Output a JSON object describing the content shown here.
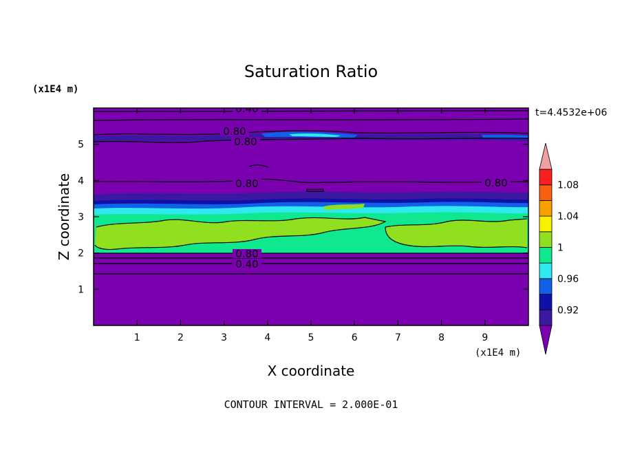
{
  "chart_data": {
    "type": "heatmap",
    "title": "Saturation Ratio",
    "xlabel": "X coordinate",
    "ylabel": "Z coordinate",
    "x_unit": "(x1E4 m)",
    "y_unit": "(x1E4 m)",
    "xlim": [
      0,
      10
    ],
    "ylim": [
      0,
      6
    ],
    "x_ticks": [
      "1",
      "2",
      "3",
      "4",
      "5",
      "6",
      "7",
      "8",
      "9"
    ],
    "y_ticks": [
      "1",
      "2",
      "3",
      "4",
      "5"
    ],
    "time_label": "t=4.4532e+06",
    "footer": "CONTOUR INTERVAL = 2.000E-01",
    "contour_labels": [
      "0.40",
      "0.80",
      "0.80",
      "0.80",
      "0.80",
      "0.80",
      "0.40"
    ],
    "colorbar": {
      "levels": [
        0.9,
        0.92,
        0.94,
        0.96,
        0.98,
        1.0,
        1.02,
        1.04,
        1.06,
        1.08,
        1.1
      ],
      "tick_labels": [
        "0.92",
        "0.96",
        "1",
        "1.04",
        "1.08"
      ],
      "colors": [
        "#3b18a0",
        "#1010a8",
        "#1060e8",
        "#30e8f0",
        "#10e890",
        "#90e020",
        "#f8f000",
        "#f8a000",
        "#f86010",
        "#f82020"
      ],
      "under_color": "#7a00b0",
      "over_color": "#f0a0a0"
    },
    "bands": [
      {
        "z_range": [
          0.0,
          2.0
        ],
        "value": 0.4
      },
      {
        "z_range": [
          2.0,
          2.7
        ],
        "value": 1.0
      },
      {
        "z_range": [
          2.7,
          3.1
        ],
        "value": 0.99
      },
      {
        "z_range": [
          3.1,
          3.4
        ],
        "value": 0.96
      },
      {
        "z_range": [
          3.4,
          6.0
        ],
        "value": 0.8
      }
    ]
  }
}
